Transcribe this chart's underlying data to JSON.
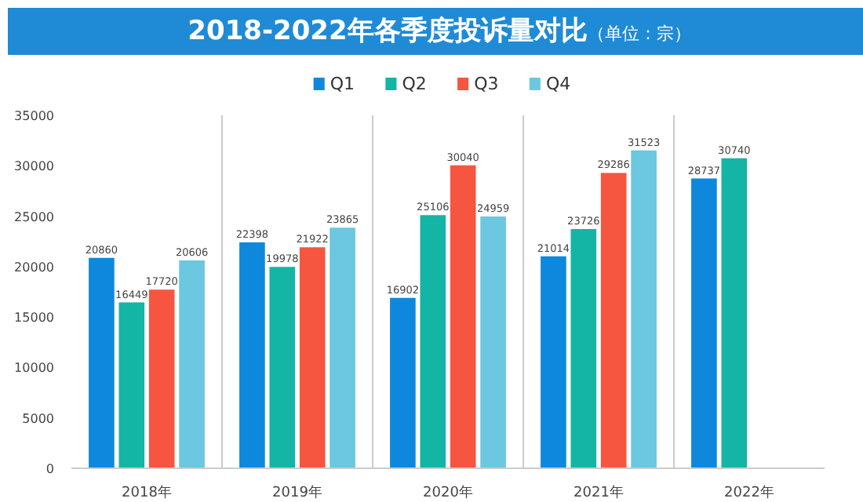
{
  "chart_data": {
    "type": "bar",
    "title": "2018-2022年各季度投诉量对比",
    "subtitle": "（单位：宗）",
    "categories": [
      "2018年",
      "2019年",
      "2020年",
      "2021年",
      "2022年"
    ],
    "series": [
      {
        "name": "Q1",
        "color": "#0e88dc",
        "values": [
          20860,
          22398,
          16902,
          21014,
          28737
        ]
      },
      {
        "name": "Q2",
        "color": "#14b5a5",
        "values": [
          16449,
          19978,
          25106,
          23726,
          30740
        ]
      },
      {
        "name": "Q3",
        "color": "#f6553f",
        "values": [
          17720,
          21922,
          30040,
          29286,
          null
        ]
      },
      {
        "name": "Q4",
        "color": "#6cc7e0",
        "values": [
          20606,
          23865,
          24959,
          31523,
          null
        ]
      }
    ],
    "ylim": [
      0,
      35000
    ],
    "yticks": [
      0,
      5000,
      10000,
      15000,
      20000,
      25000,
      30000,
      35000
    ],
    "grid": "x",
    "legend": "top",
    "data_labels": true
  }
}
